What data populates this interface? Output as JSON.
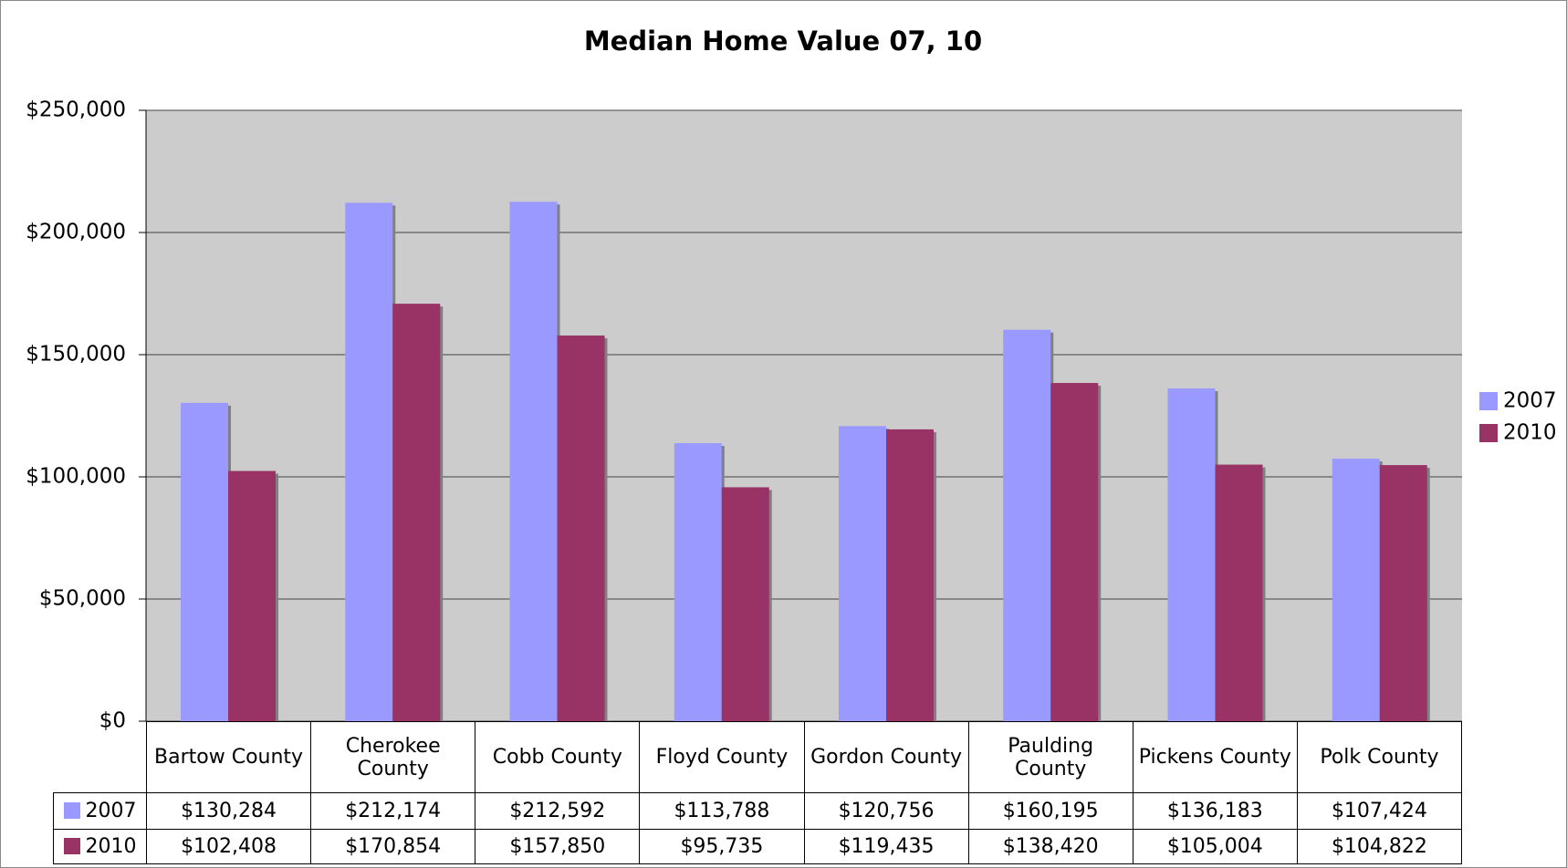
{
  "chart_data": {
    "type": "bar",
    "title": "Median Home Value 07, 10",
    "categories": [
      "Bartow County",
      "Cherokee County",
      "Cobb County",
      "Floyd County",
      "Gordon County",
      "Paulding County",
      "Pickens County",
      "Polk County"
    ],
    "series": [
      {
        "name": "2007",
        "color": "#9999ff",
        "values": [
          130284,
          212174,
          212592,
          113788,
          120756,
          160195,
          136183,
          107424
        ],
        "value_labels": [
          "$130,284",
          "$212,174",
          "$212,592",
          "$113,788",
          "$120,756",
          "$160,195",
          "$136,183",
          "$107,424"
        ]
      },
      {
        "name": "2010",
        "color": "#993366",
        "values": [
          102408,
          170854,
          157850,
          95735,
          119435,
          138420,
          105004,
          104822
        ],
        "value_labels": [
          "$102,408",
          "$170,854",
          "$157,850",
          "$95,735",
          "$119,435",
          "$138,420",
          "$105,004",
          "$104,822"
        ]
      }
    ],
    "ylim": [
      0,
      250000
    ],
    "yticks": [
      {
        "value": 0,
        "label": "$0"
      },
      {
        "value": 50000,
        "label": "$50,000"
      },
      {
        "value": 100000,
        "label": "$100,000"
      },
      {
        "value": 150000,
        "label": "$150,000"
      },
      {
        "value": 200000,
        "label": "$200,000"
      },
      {
        "value": 250000,
        "label": "$250,000"
      }
    ],
    "grid": true,
    "legend": "right"
  }
}
